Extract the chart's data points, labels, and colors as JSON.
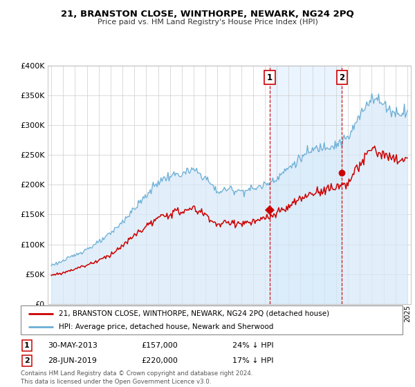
{
  "title": "21, BRANSTON CLOSE, WINTHORPE, NEWARK, NG24 2PQ",
  "subtitle": "Price paid vs. HM Land Registry's House Price Index (HPI)",
  "footer": "Contains HM Land Registry data © Crown copyright and database right 2024.\nThis data is licensed under the Open Government Licence v3.0.",
  "legend_line1": "21, BRANSTON CLOSE, WINTHORPE, NEWARK, NG24 2PQ (detached house)",
  "legend_line2": "HPI: Average price, detached house, Newark and Sherwood",
  "annotation1": {
    "label": "1",
    "date": "30-MAY-2013",
    "price": "£157,000",
    "pct": "24% ↓ HPI"
  },
  "annotation2": {
    "label": "2",
    "date": "28-JUN-2019",
    "price": "£220,000",
    "pct": "17% ↓ HPI"
  },
  "hpi_color": "#6baed6",
  "hpi_fill_color": "#d6e9f8",
  "price_color": "#cc0000",
  "annotation_color": "#cc0000",
  "background_color": "#ffffff",
  "grid_color": "#cccccc",
  "shade_color": "#ddeeff",
  "ylim": [
    0,
    400000
  ],
  "xlim_start": 1994.7,
  "xlim_end": 2025.3,
  "marker1_x": 2013.41,
  "marker1_y": 157000,
  "marker2_x": 2019.49,
  "marker2_y": 220000,
  "vline1_x": 2013.41,
  "vline2_x": 2019.49,
  "hpi_anchors_x": [
    1995,
    1996,
    1997,
    1998,
    1999,
    2000,
    2001,
    2002,
    2003,
    2004,
    2005,
    2006,
    2007,
    2008,
    2009,
    2010,
    2011,
    2012,
    2013,
    2014,
    2015,
    2016,
    2017,
    2018,
    2019,
    2020,
    2021,
    2022,
    2023,
    2024,
    2025
  ],
  "hpi_anchors_y": [
    65000,
    72000,
    82000,
    92000,
    103000,
    118000,
    138000,
    160000,
    182000,
    205000,
    215000,
    218000,
    225000,
    212000,
    188000,
    193000,
    190000,
    193000,
    200000,
    212000,
    228000,
    245000,
    258000,
    265000,
    268000,
    278000,
    315000,
    350000,
    335000,
    320000,
    325000
  ],
  "pp_anchors_x": [
    1995,
    1996,
    1997,
    1998,
    1999,
    2000,
    2001,
    2002,
    2003,
    2004,
    2005,
    2006,
    2007,
    2008,
    2009,
    2010,
    2011,
    2012,
    2013,
    2014,
    2015,
    2016,
    2017,
    2018,
    2019,
    2020,
    2021,
    2022,
    2023,
    2024,
    2025
  ],
  "pp_anchors_y": [
    48000,
    52000,
    59000,
    65000,
    73000,
    83000,
    97000,
    115000,
    130000,
    143000,
    152000,
    155000,
    160000,
    150000,
    132000,
    137000,
    135000,
    137000,
    143000,
    151000,
    163000,
    176000,
    186000,
    192000,
    196000,
    204000,
    232000,
    262000,
    250000,
    240000,
    245000
  ]
}
